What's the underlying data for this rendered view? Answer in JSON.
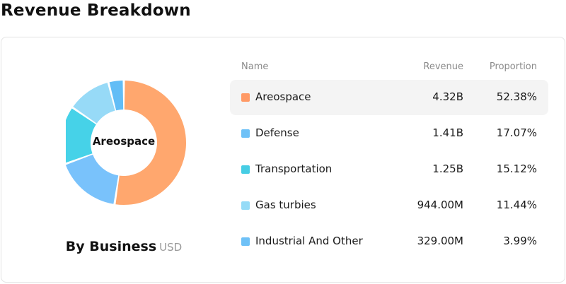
{
  "title": "Revenue Breakdown",
  "chart_data": {
    "type": "pie",
    "center_label": "Areospace",
    "categories": [
      "Areospace",
      "Defense",
      "Transportation",
      "Gas turbies",
      "Industrial And Other"
    ],
    "values": [
      52.38,
      17.07,
      15.12,
      11.44,
      3.99
    ],
    "colors": [
      "#ffa76e",
      "#79c2fb",
      "#46d2e8",
      "#97daf7",
      "#62bdf6"
    ]
  },
  "subtitle": {
    "main": "By Business",
    "unit": "USD"
  },
  "table": {
    "headers": {
      "name": "Name",
      "revenue": "Revenue",
      "proportion": "Proportion"
    },
    "rows": [
      {
        "name": "Areospace",
        "revenue": "4.32B",
        "proportion": "52.38%",
        "color": "#ff9a66"
      },
      {
        "name": "Defense",
        "revenue": "1.41B",
        "proportion": "17.07%",
        "color": "#6ec1f7"
      },
      {
        "name": "Transportation",
        "revenue": "1.25B",
        "proportion": "15.12%",
        "color": "#46cde4"
      },
      {
        "name": "Gas turbies",
        "revenue": "944.00M",
        "proportion": "11.44%",
        "color": "#95dbf7"
      },
      {
        "name": "Industrial And Other",
        "revenue": "329.00M",
        "proportion": "3.99%",
        "color": "#6ec1f7"
      }
    ]
  }
}
